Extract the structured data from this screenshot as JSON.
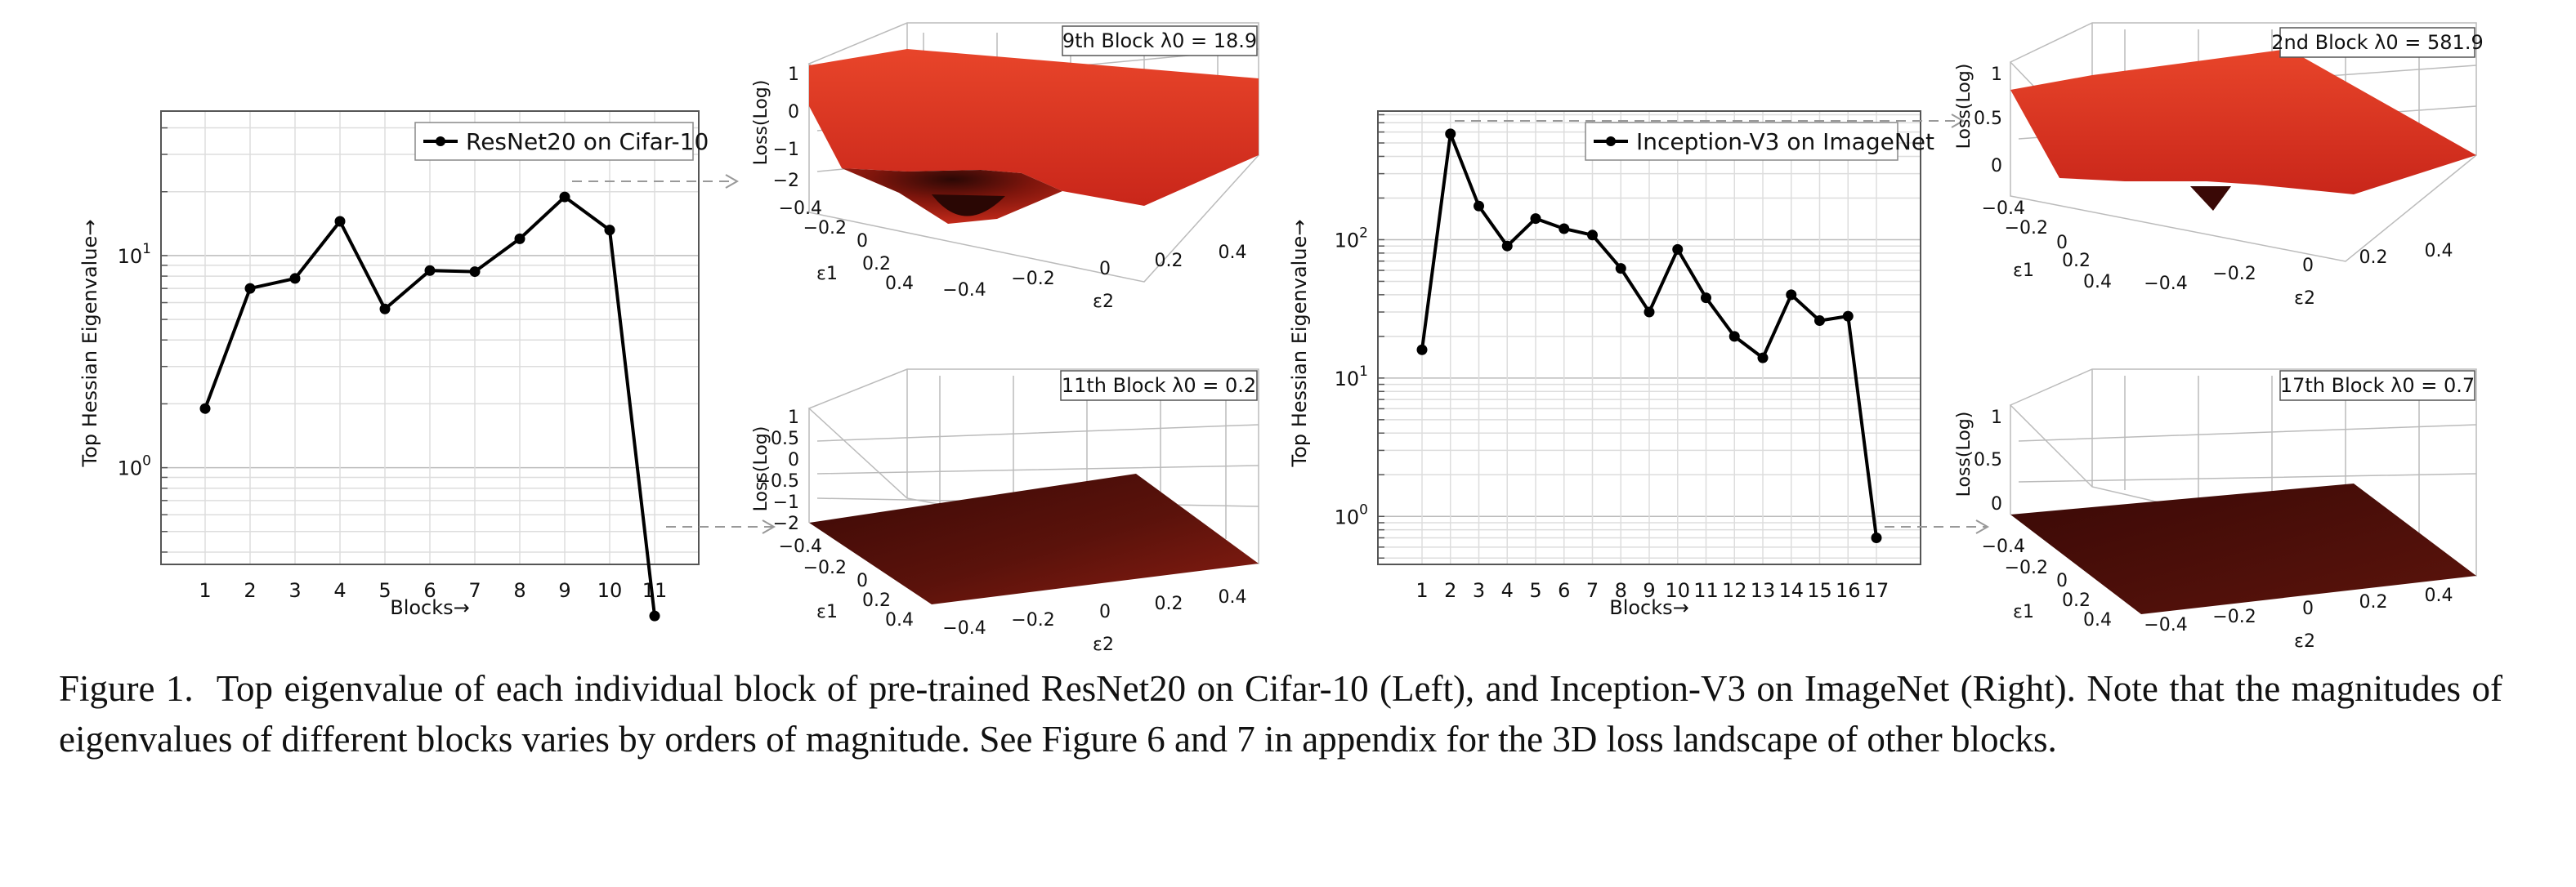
{
  "caption": {
    "label": "Figure 1.",
    "text": "Top eigenvalue of each individual block of pre-trained ResNet20 on Cifar-10 (Left), and Inception-V3 on ImageNet (Right). Note that the magnitudes of eigenvalues of different blocks varies by orders of magnitude. See Figure 6 and 7 in appendix for the 3D loss landscape of other blocks."
  },
  "chart_data": [
    {
      "type": "line",
      "legend": "ResNet20 on Cifar-10",
      "legend_position": "top-right",
      "xlabel": "Blocks→",
      "ylabel": "Top Hessian Eigenvalue→",
      "yscale": "log",
      "grid": true,
      "ylim": [
        0.35,
        48
      ],
      "x": [
        1,
        2,
        3,
        4,
        5,
        6,
        7,
        8,
        9,
        10,
        11
      ],
      "y": [
        1.9,
        7.0,
        7.8,
        14.5,
        5.6,
        8.5,
        8.4,
        12.0,
        18.9,
        13.2,
        0.2
      ],
      "xticks": [
        "1",
        "2",
        "3",
        "4",
        "5",
        "6",
        "7",
        "8",
        "9",
        "10",
        "11"
      ],
      "yticks": [
        {
          "value": 1,
          "label": "10^0"
        },
        {
          "value": 10,
          "label": "10^1"
        }
      ]
    },
    {
      "type": "line",
      "legend": "Inception-V3 on ImageNet",
      "legend_position": "top-right",
      "xlabel": "Blocks→",
      "ylabel": "Top Hessian Eigenvalue→",
      "yscale": "log",
      "grid": true,
      "ylim": [
        0.45,
        850
      ],
      "x": [
        1,
        2,
        3,
        4,
        5,
        6,
        7,
        8,
        9,
        10,
        11,
        12,
        13,
        14,
        15,
        16,
        17
      ],
      "y": [
        16,
        581.9,
        175,
        90,
        142,
        120,
        108,
        62,
        30,
        85,
        38,
        20,
        14,
        40,
        26,
        28,
        0.7
      ],
      "xticks": [
        "1",
        "2",
        "3",
        "4",
        "5",
        "6",
        "7",
        "8",
        "9",
        "10",
        "11",
        "12",
        "13",
        "14",
        "15",
        "16",
        "17"
      ],
      "yticks": [
        {
          "value": 1,
          "label": "10^0"
        },
        {
          "value": 10,
          "label": "10^1"
        },
        {
          "value": 100,
          "label": "10^2"
        }
      ]
    },
    {
      "type": "surface3d",
      "title": "9th Block λ0 = 18.9",
      "zlabel": "Loss(Log)",
      "xlabel": "ε2",
      "ylabel": "ε1",
      "zticks": [
        "1",
        "0",
        "−1",
        "−2"
      ],
      "e1ticks": [
        "−0.4",
        "−0.2",
        "0",
        "0.2",
        "0.4"
      ],
      "e2ticks": [
        "−0.4",
        "−0.2",
        "0",
        "0.2",
        "0.4"
      ]
    },
    {
      "type": "surface3d",
      "title": "11th Block λ0 = 0.2",
      "zlabel": "Loss(Log)",
      "xlabel": "ε2",
      "ylabel": "ε1",
      "zticks": [
        "1",
        "0.5",
        "0",
        "−0.5",
        "−1",
        "−1.5",
        "−2"
      ],
      "e1ticks": [
        "−0.4",
        "−0.2",
        "0",
        "0.2",
        "0.4"
      ],
      "e2ticks": [
        "−0.4",
        "−0.2",
        "0",
        "0.2",
        "0.4"
      ]
    },
    {
      "type": "surface3d",
      "title": "2nd Block λ0 = 581.9",
      "zlabel": "Loss(Log)",
      "xlabel": "ε2",
      "ylabel": "ε1",
      "zticks": [
        "1",
        "0.5",
        "0"
      ],
      "e1ticks": [
        "−0.4",
        "−0.2",
        "0",
        "0.2",
        "0.4"
      ],
      "e2ticks": [
        "−0.4",
        "−0.2",
        "0",
        "0.2",
        "0.4"
      ]
    },
    {
      "type": "surface3d",
      "title": "17th Block λ0 = 0.7",
      "zlabel": "Loss(Log)",
      "xlabel": "ε2",
      "ylabel": "ε1",
      "zticks": [
        "1",
        "0.5",
        "0"
      ],
      "e1ticks": [
        "−0.4",
        "−0.2",
        "0",
        "0.2",
        "0.4"
      ],
      "e2ticks": [
        "−0.4",
        "−0.2",
        "0",
        "0.2",
        "0.4"
      ]
    }
  ]
}
